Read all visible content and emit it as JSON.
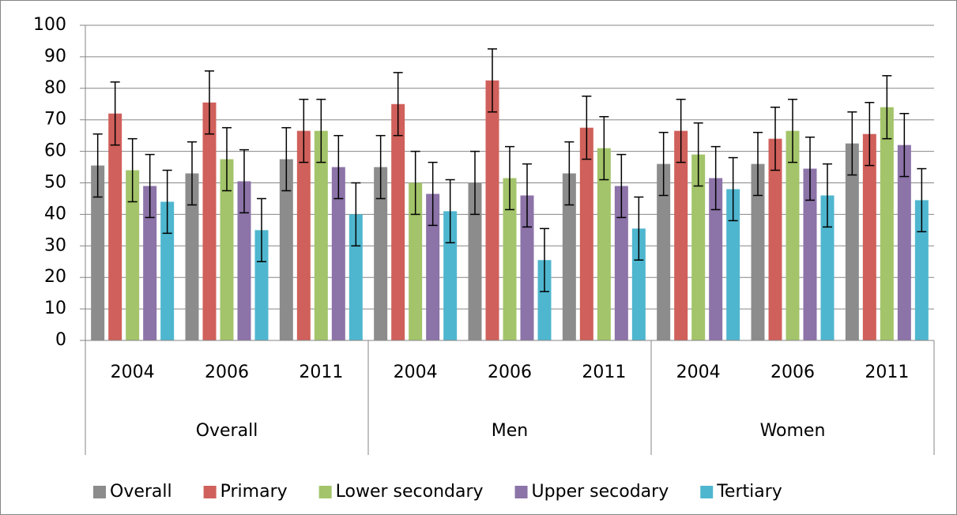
{
  "chart_data": {
    "type": "bar",
    "categories": [
      "2004",
      "2006",
      "2011",
      "2004",
      "2006",
      "2011",
      "2004",
      "2006",
      "2011"
    ],
    "category_groups": [
      "Overall",
      "Men",
      "Women"
    ],
    "series": [
      {
        "name": "Overall",
        "color": "#8c8c8c",
        "values": [
          55.5,
          53,
          57.5,
          55,
          50,
          53,
          56,
          56,
          62.5
        ],
        "errors": [
          10,
          10,
          10,
          10,
          10,
          10,
          10,
          10,
          10
        ]
      },
      {
        "name": "Primary",
        "color": "#d0605b",
        "values": [
          72,
          75.5,
          66.5,
          75,
          82.5,
          67.5,
          66.5,
          64,
          65.5
        ],
        "errors": [
          10,
          10,
          10,
          10,
          10,
          10,
          10,
          10,
          10
        ]
      },
      {
        "name": "Lower secondary",
        "color": "#a3c46a",
        "values": [
          54,
          57.5,
          66.5,
          50,
          51.5,
          61,
          59,
          66.5,
          74
        ],
        "errors": [
          10,
          10,
          10,
          10,
          10,
          10,
          10,
          10,
          10
        ]
      },
      {
        "name": "Upper secodary",
        "color": "#8c73a8",
        "values": [
          49,
          50.5,
          55,
          46.5,
          46,
          49,
          51.5,
          54.5,
          62
        ],
        "errors": [
          10,
          10,
          10,
          10,
          10,
          10,
          10,
          10,
          10
        ]
      },
      {
        "name": "Tertiary",
        "color": "#4fb6cf",
        "values": [
          44,
          35,
          40,
          41,
          25.5,
          35.5,
          48,
          46,
          44.5
        ],
        "errors": [
          10,
          10,
          10,
          10,
          10,
          10,
          10,
          10,
          10
        ]
      }
    ],
    "ylim": [
      0,
      100
    ],
    "yticks": [
      0,
      10,
      20,
      30,
      40,
      50,
      60,
      70,
      80,
      90,
      100
    ],
    "grid": true,
    "legend": "bottom"
  }
}
